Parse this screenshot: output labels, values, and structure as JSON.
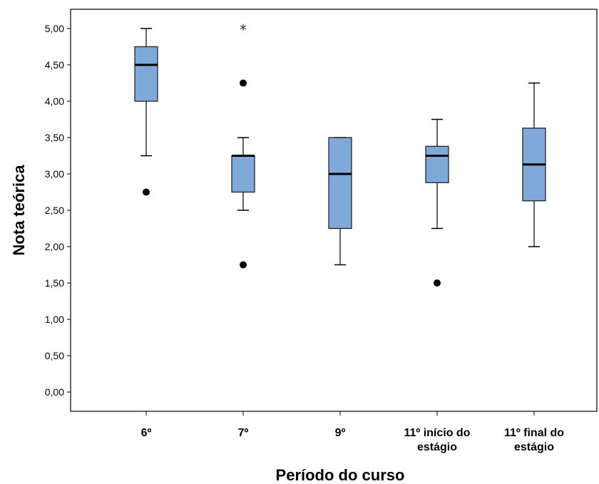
{
  "chart_data": {
    "type": "boxplot",
    "xlabel": "Período do curso",
    "ylabel": "Nota teórica",
    "ylim": [
      0,
      5
    ],
    "yticks": [
      "0,00",
      "0,50",
      "1,00",
      "1,50",
      "2,00",
      "2,50",
      "3,00",
      "3,50",
      "4,00",
      "4,50",
      "5,00"
    ],
    "grid": false,
    "box_color": "#7ea9d8",
    "categories": [
      {
        "label": [
          "6º"
        ],
        "whisker_low": 3.25,
        "q1": 4.0,
        "median": 4.5,
        "q3": 4.75,
        "whisker_high": 5.0,
        "outliers": [
          2.75
        ],
        "extremes": []
      },
      {
        "label": [
          "7º"
        ],
        "whisker_low": 2.5,
        "q1": 2.75,
        "median": 3.25,
        "q3": 3.25,
        "whisker_high": 3.5,
        "outliers": [
          4.25,
          1.75
        ],
        "extremes": [
          5.0
        ]
      },
      {
        "label": [
          "9º"
        ],
        "whisker_low": 1.75,
        "q1": 2.25,
        "median": 3.0,
        "q3": 3.5,
        "whisker_high": 3.5,
        "outliers": [],
        "extremes": []
      },
      {
        "label": [
          "11º início do",
          "estágio"
        ],
        "whisker_low": 2.25,
        "q1": 2.88,
        "median": 3.25,
        "q3": 3.38,
        "whisker_high": 3.75,
        "outliers": [
          1.5
        ],
        "extremes": []
      },
      {
        "label": [
          "11º final do",
          "estágio"
        ],
        "whisker_low": 2.0,
        "q1": 2.63,
        "median": 3.13,
        "q3": 3.63,
        "whisker_high": 4.25,
        "outliers": [],
        "extremes": []
      }
    ]
  }
}
